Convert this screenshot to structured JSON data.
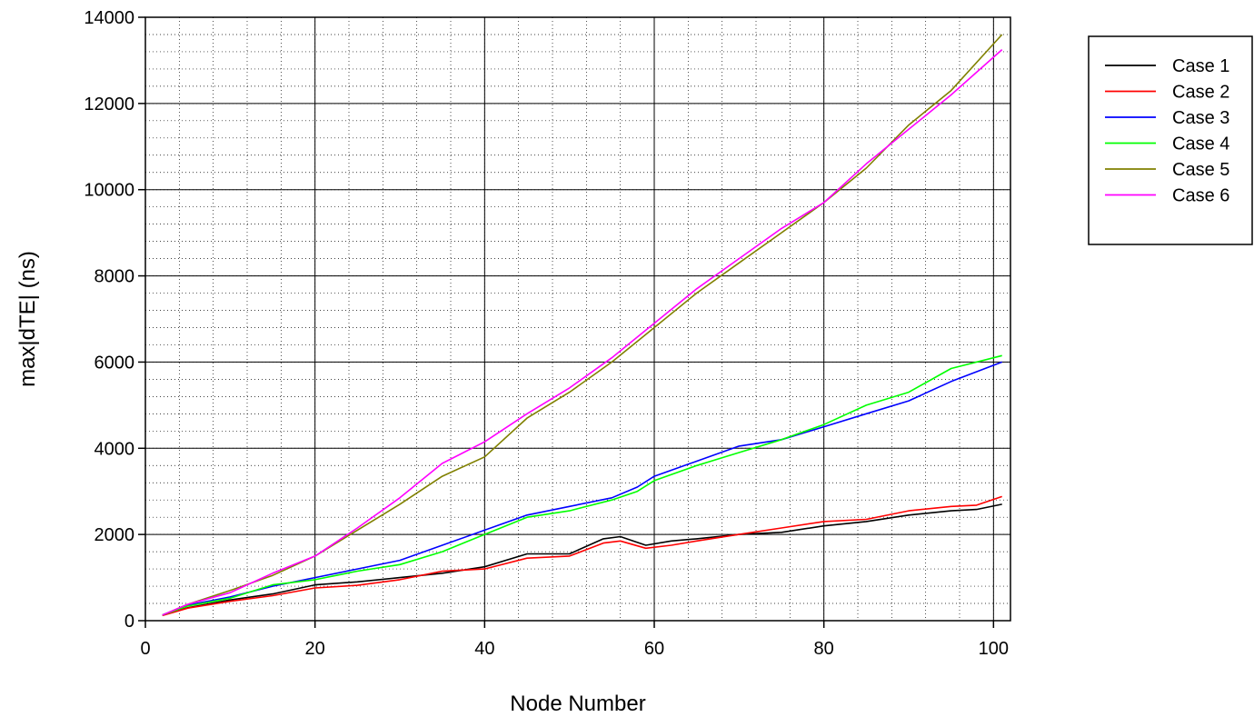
{
  "chart_data": {
    "type": "line",
    "title": "",
    "xlabel": "Node Number",
    "ylabel": "max|dTE| (ns)",
    "xlim": [
      0,
      102
    ],
    "ylim": [
      0,
      14000
    ],
    "x_ticks": [
      0,
      20,
      40,
      60,
      80,
      100
    ],
    "y_ticks": [
      0,
      2000,
      4000,
      6000,
      8000,
      10000,
      12000,
      14000
    ],
    "grid": {
      "major": true,
      "minor": true,
      "minor_step_x": 4,
      "minor_step_y": 400
    },
    "legend_position": "outside-top-right",
    "series": [
      {
        "name": "Case 1",
        "color": "#000000",
        "x": [
          2,
          5,
          10,
          15,
          20,
          25,
          30,
          35,
          40,
          45,
          50,
          54,
          56,
          59,
          62,
          65,
          70,
          75,
          80,
          85,
          90,
          95,
          98,
          101
        ],
        "y": [
          130,
          300,
          480,
          620,
          830,
          900,
          1000,
          1100,
          1250,
          1550,
          1550,
          1900,
          1950,
          1750,
          1850,
          1900,
          2000,
          2050,
          2200,
          2300,
          2450,
          2550,
          2580,
          2700
        ]
      },
      {
        "name": "Case 2",
        "color": "#ff0000",
        "x": [
          2,
          5,
          10,
          15,
          20,
          25,
          30,
          35,
          40,
          45,
          50,
          54,
          56,
          59,
          62,
          65,
          70,
          75,
          80,
          85,
          90,
          95,
          98,
          101
        ],
        "y": [
          120,
          290,
          450,
          580,
          760,
          820,
          950,
          1150,
          1200,
          1450,
          1500,
          1800,
          1850,
          1680,
          1750,
          1850,
          2000,
          2150,
          2300,
          2350,
          2550,
          2650,
          2680,
          2880
        ]
      },
      {
        "name": "Case 3",
        "color": "#0000ff",
        "x": [
          2,
          5,
          10,
          15,
          20,
          25,
          30,
          35,
          40,
          45,
          50,
          55,
          58,
          60,
          65,
          70,
          75,
          80,
          85,
          90,
          95,
          101
        ],
        "y": [
          130,
          360,
          550,
          800,
          1000,
          1200,
          1400,
          1750,
          2100,
          2450,
          2650,
          2850,
          3100,
          3350,
          3700,
          4050,
          4200,
          4500,
          4800,
          5100,
          5550,
          6000
        ]
      },
      {
        "name": "Case 4",
        "color": "#00ff00",
        "x": [
          2,
          5,
          10,
          15,
          20,
          25,
          30,
          35,
          40,
          45,
          50,
          55,
          58,
          60,
          65,
          70,
          75,
          80,
          85,
          90,
          95,
          101
        ],
        "y": [
          130,
          340,
          520,
          830,
          950,
          1150,
          1300,
          1600,
          2000,
          2400,
          2550,
          2800,
          3000,
          3250,
          3600,
          3900,
          4200,
          4550,
          5000,
          5300,
          5850,
          6150
        ]
      },
      {
        "name": "Case 5",
        "color": "#808000",
        "x": [
          2,
          5,
          10,
          15,
          20,
          25,
          30,
          35,
          40,
          45,
          50,
          55,
          60,
          65,
          70,
          75,
          80,
          85,
          90,
          95,
          101
        ],
        "y": [
          130,
          380,
          700,
          1050,
          1500,
          2100,
          2700,
          3350,
          3800,
          4700,
          5300,
          6000,
          6800,
          7600,
          8300,
          9000,
          9700,
          10500,
          11500,
          12300,
          13600
        ]
      },
      {
        "name": "Case 6",
        "color": "#ff00ff",
        "x": [
          2,
          5,
          10,
          15,
          20,
          25,
          30,
          35,
          40,
          45,
          50,
          55,
          60,
          65,
          70,
          75,
          80,
          85,
          90,
          95,
          101
        ],
        "y": [
          130,
          380,
          650,
          1100,
          1500,
          2150,
          2850,
          3650,
          4150,
          4800,
          5400,
          6100,
          6900,
          7700,
          8400,
          9100,
          9700,
          10600,
          11400,
          12200,
          13250
        ]
      }
    ]
  }
}
